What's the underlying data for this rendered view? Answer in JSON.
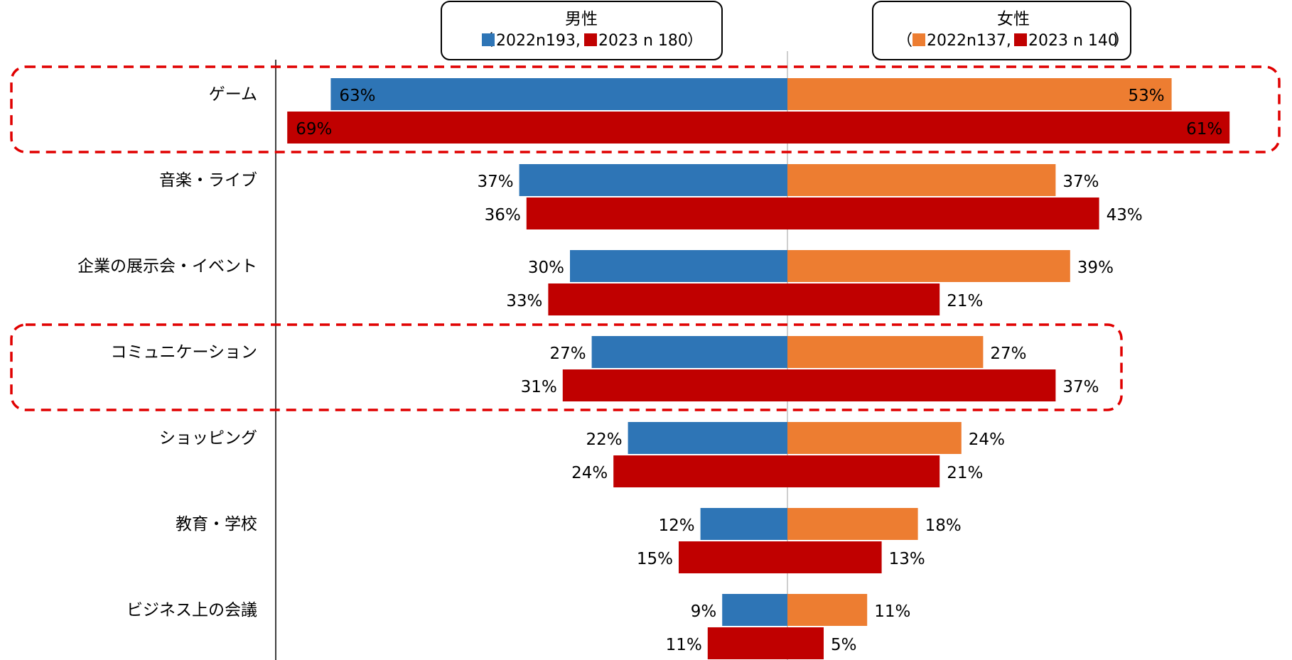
{
  "chart_data": {
    "type": "bar",
    "orientation": "horizontal-diverging",
    "categories": [
      "ゲーム",
      "音楽・ライブ",
      "企業の展示会・イベント",
      "コミュニケーション",
      "ショッピング",
      "教育・学校",
      "ビジネス上の会議"
    ],
    "series": [
      {
        "name": "2022n193",
        "group": "男性",
        "side": "left",
        "color": "#2e75b6",
        "values": [
          63,
          37,
          30,
          27,
          22,
          12,
          9
        ]
      },
      {
        "name": "2023 n 180",
        "group": "男性",
        "side": "left",
        "color": "#c00000",
        "values": [
          69,
          36,
          33,
          31,
          24,
          15,
          11
        ]
      },
      {
        "name": "2022n137",
        "group": "女性",
        "side": "right",
        "color": "#ed7d31",
        "values": [
          53,
          37,
          39,
          27,
          24,
          18,
          11
        ]
      },
      {
        "name": "2023 n 140",
        "group": "女性",
        "side": "right",
        "color": "#c00000",
        "values": [
          61,
          43,
          21,
          37,
          21,
          13,
          5
        ]
      }
    ],
    "value_suffix": "%",
    "xlim": [
      0,
      70
    ],
    "legend": {
      "male": {
        "title": "男性",
        "open": "（",
        "entries": [
          "2022n193,",
          "2023 n 180"
        ],
        "close": "）"
      },
      "female": {
        "title": "女性",
        "open": "（",
        "entries": [
          "2022n137,",
          "2023 n 140"
        ],
        "close": "）"
      }
    },
    "highlighted_categories": [
      "ゲーム",
      "コミュニケーション"
    ],
    "colors": {
      "male2022": "#2e75b6",
      "female2022": "#ed7d31",
      "y2023": "#c00000",
      "highlight": "#e00000",
      "label_grey": "#595959"
    }
  }
}
